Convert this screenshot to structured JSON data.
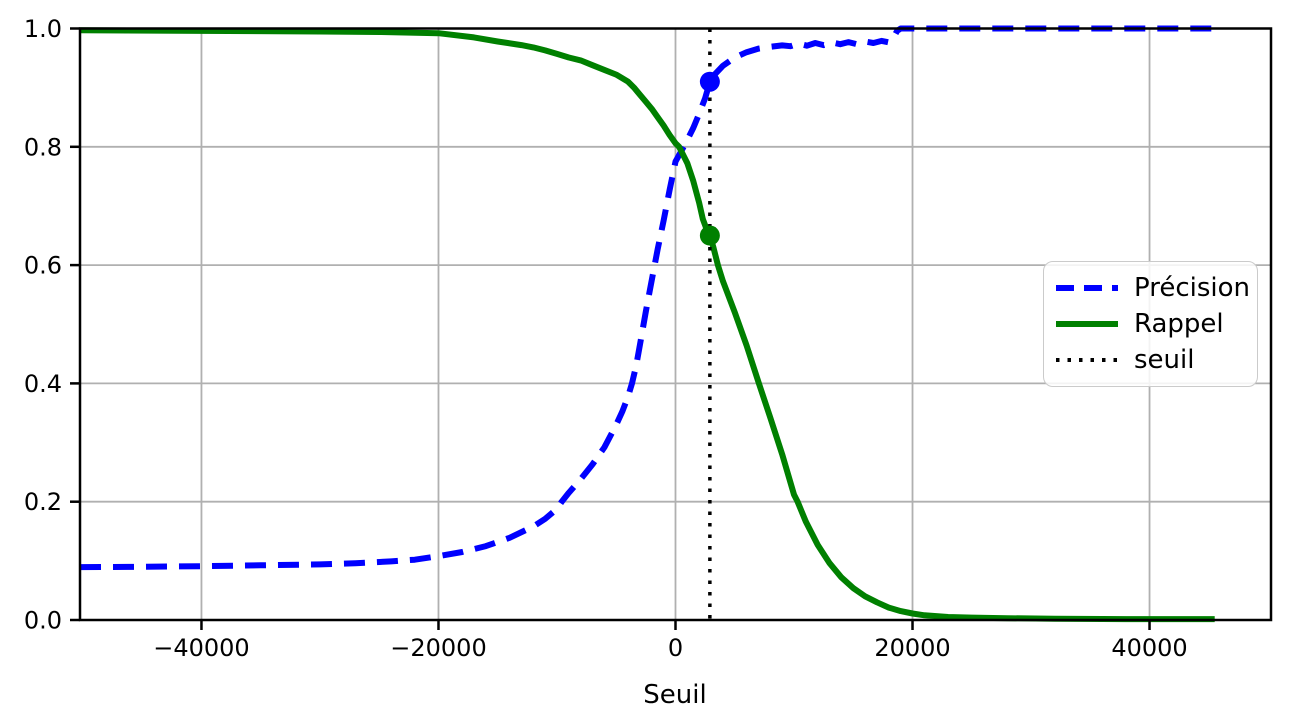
{
  "colors": {
    "background": "#ffffff",
    "axis": "#000000",
    "grid": "#b0b0b0",
    "precision": "#0000ff",
    "rappel": "#008000",
    "threshold": "#000000"
  },
  "chart_data": {
    "type": "line",
    "title": "",
    "xlabel": "Seuil",
    "ylabel": "",
    "xlim": [
      -50250,
      50250
    ],
    "ylim": [
      0,
      1
    ],
    "grid": true,
    "legend_position": "center-right",
    "x_ticks": {
      "values": [
        -40000,
        -20000,
        0,
        20000,
        40000
      ],
      "labels": [
        "−40000",
        "−20000",
        "0",
        "20000",
        "40000"
      ]
    },
    "y_ticks": {
      "values": [
        0.0,
        0.2,
        0.4,
        0.6,
        0.8,
        1.0
      ],
      "labels": [
        "0.0",
        "0.2",
        "0.4",
        "0.6",
        "0.8",
        "1.0"
      ]
    },
    "threshold": {
      "label": "seuil",
      "x": 2900,
      "color": "#000000",
      "style": "dotted"
    },
    "markers": [
      {
        "name": "precision-at-threshold",
        "series": "Précision",
        "x": 2900,
        "y": 0.91,
        "color": "#0000ff"
      },
      {
        "name": "rappel-at-threshold",
        "series": "Rappel",
        "x": 2900,
        "y": 0.65,
        "color": "#008000"
      }
    ],
    "series": [
      {
        "name": "Précision",
        "color": "#0000ff",
        "style": "dashed",
        "points": [
          [
            -50250,
            0.0895
          ],
          [
            -45000,
            0.09
          ],
          [
            -40000,
            0.091
          ],
          [
            -35000,
            0.0925
          ],
          [
            -30000,
            0.094
          ],
          [
            -27000,
            0.096
          ],
          [
            -24000,
            0.099
          ],
          [
            -22000,
            0.102
          ],
          [
            -20000,
            0.108
          ],
          [
            -18000,
            0.115
          ],
          [
            -16000,
            0.125
          ],
          [
            -14000,
            0.139
          ],
          [
            -12000,
            0.158
          ],
          [
            -11000,
            0.171
          ],
          [
            -10000,
            0.188
          ],
          [
            -9600,
            0.2
          ],
          [
            -9000,
            0.215
          ],
          [
            -8000,
            0.238
          ],
          [
            -7000,
            0.263
          ],
          [
            -6000,
            0.292
          ],
          [
            -5000,
            0.33
          ],
          [
            -4500,
            0.352
          ],
          [
            -4000,
            0.378
          ],
          [
            -3670,
            0.4
          ],
          [
            -3300,
            0.432
          ],
          [
            -3000,
            0.465
          ],
          [
            -2500,
            0.522
          ],
          [
            -2000,
            0.575
          ],
          [
            -1500,
            0.627
          ],
          [
            -1000,
            0.675
          ],
          [
            -500,
            0.727
          ],
          [
            0,
            0.775
          ],
          [
            500,
            0.793
          ],
          [
            1000,
            0.812
          ],
          [
            1500,
            0.832
          ],
          [
            2000,
            0.856
          ],
          [
            2500,
            0.882
          ],
          [
            2900,
            0.91
          ],
          [
            3300,
            0.922
          ],
          [
            4000,
            0.937
          ],
          [
            5000,
            0.951
          ],
          [
            6000,
            0.96
          ],
          [
            7000,
            0.966
          ],
          [
            8000,
            0.969
          ],
          [
            9000,
            0.9715
          ],
          [
            9700,
            0.97
          ],
          [
            10400,
            0.9745
          ],
          [
            11100,
            0.971
          ],
          [
            11800,
            0.9755
          ],
          [
            12500,
            0.972
          ],
          [
            13200,
            0.9765
          ],
          [
            13900,
            0.9735
          ],
          [
            14600,
            0.977
          ],
          [
            15300,
            0.9735
          ],
          [
            16000,
            0.978
          ],
          [
            16700,
            0.9755
          ],
          [
            17400,
            0.979
          ],
          [
            18000,
            0.9765
          ],
          [
            18400,
            0.985
          ],
          [
            18700,
            0.996
          ],
          [
            19000,
            1.0
          ],
          [
            20000,
            1.0
          ],
          [
            25000,
            1.0
          ],
          [
            30000,
            1.0
          ],
          [
            38000,
            1.0
          ],
          [
            45500,
            1.0
          ]
        ]
      },
      {
        "name": "Rappel",
        "color": "#008000",
        "style": "solid",
        "points": [
          [
            -50250,
            0.997
          ],
          [
            -40000,
            0.996
          ],
          [
            -30000,
            0.995
          ],
          [
            -25000,
            0.994
          ],
          [
            -20000,
            0.992
          ],
          [
            -17000,
            0.985
          ],
          [
            -15000,
            0.978
          ],
          [
            -13000,
            0.972
          ],
          [
            -12000,
            0.968
          ],
          [
            -11000,
            0.963
          ],
          [
            -10000,
            0.957
          ],
          [
            -9000,
            0.951
          ],
          [
            -8000,
            0.946
          ],
          [
            -7000,
            0.938
          ],
          [
            -6000,
            0.93
          ],
          [
            -5000,
            0.922
          ],
          [
            -4000,
            0.91
          ],
          [
            -3500,
            0.9
          ],
          [
            -3000,
            0.888
          ],
          [
            -2500,
            0.876
          ],
          [
            -2000,
            0.864
          ],
          [
            -1500,
            0.85
          ],
          [
            -1000,
            0.836
          ],
          [
            -500,
            0.82
          ],
          [
            0,
            0.806
          ],
          [
            300,
            0.8
          ],
          [
            1000,
            0.772
          ],
          [
            1500,
            0.742
          ],
          [
            2000,
            0.705
          ],
          [
            2300,
            0.678
          ],
          [
            2600,
            0.662
          ],
          [
            2900,
            0.65
          ],
          [
            3200,
            0.63
          ],
          [
            3580,
            0.6
          ],
          [
            4000,
            0.573
          ],
          [
            5000,
            0.52
          ],
          [
            6000,
            0.464
          ],
          [
            7000,
            0.402
          ],
          [
            8000,
            0.342
          ],
          [
            9000,
            0.28
          ],
          [
            10000,
            0.212
          ],
          [
            10300,
            0.2
          ],
          [
            11000,
            0.166
          ],
          [
            12000,
            0.127
          ],
          [
            13000,
            0.096
          ],
          [
            14000,
            0.072
          ],
          [
            15000,
            0.054
          ],
          [
            16000,
            0.04
          ],
          [
            17000,
            0.03
          ],
          [
            18000,
            0.021
          ],
          [
            19000,
            0.015
          ],
          [
            20000,
            0.011
          ],
          [
            21000,
            0.008
          ],
          [
            23000,
            0.005
          ],
          [
            25000,
            0.004
          ],
          [
            28000,
            0.003
          ],
          [
            32000,
            0.002
          ],
          [
            38000,
            0.0015
          ],
          [
            45500,
            0.0015
          ]
        ]
      }
    ]
  }
}
